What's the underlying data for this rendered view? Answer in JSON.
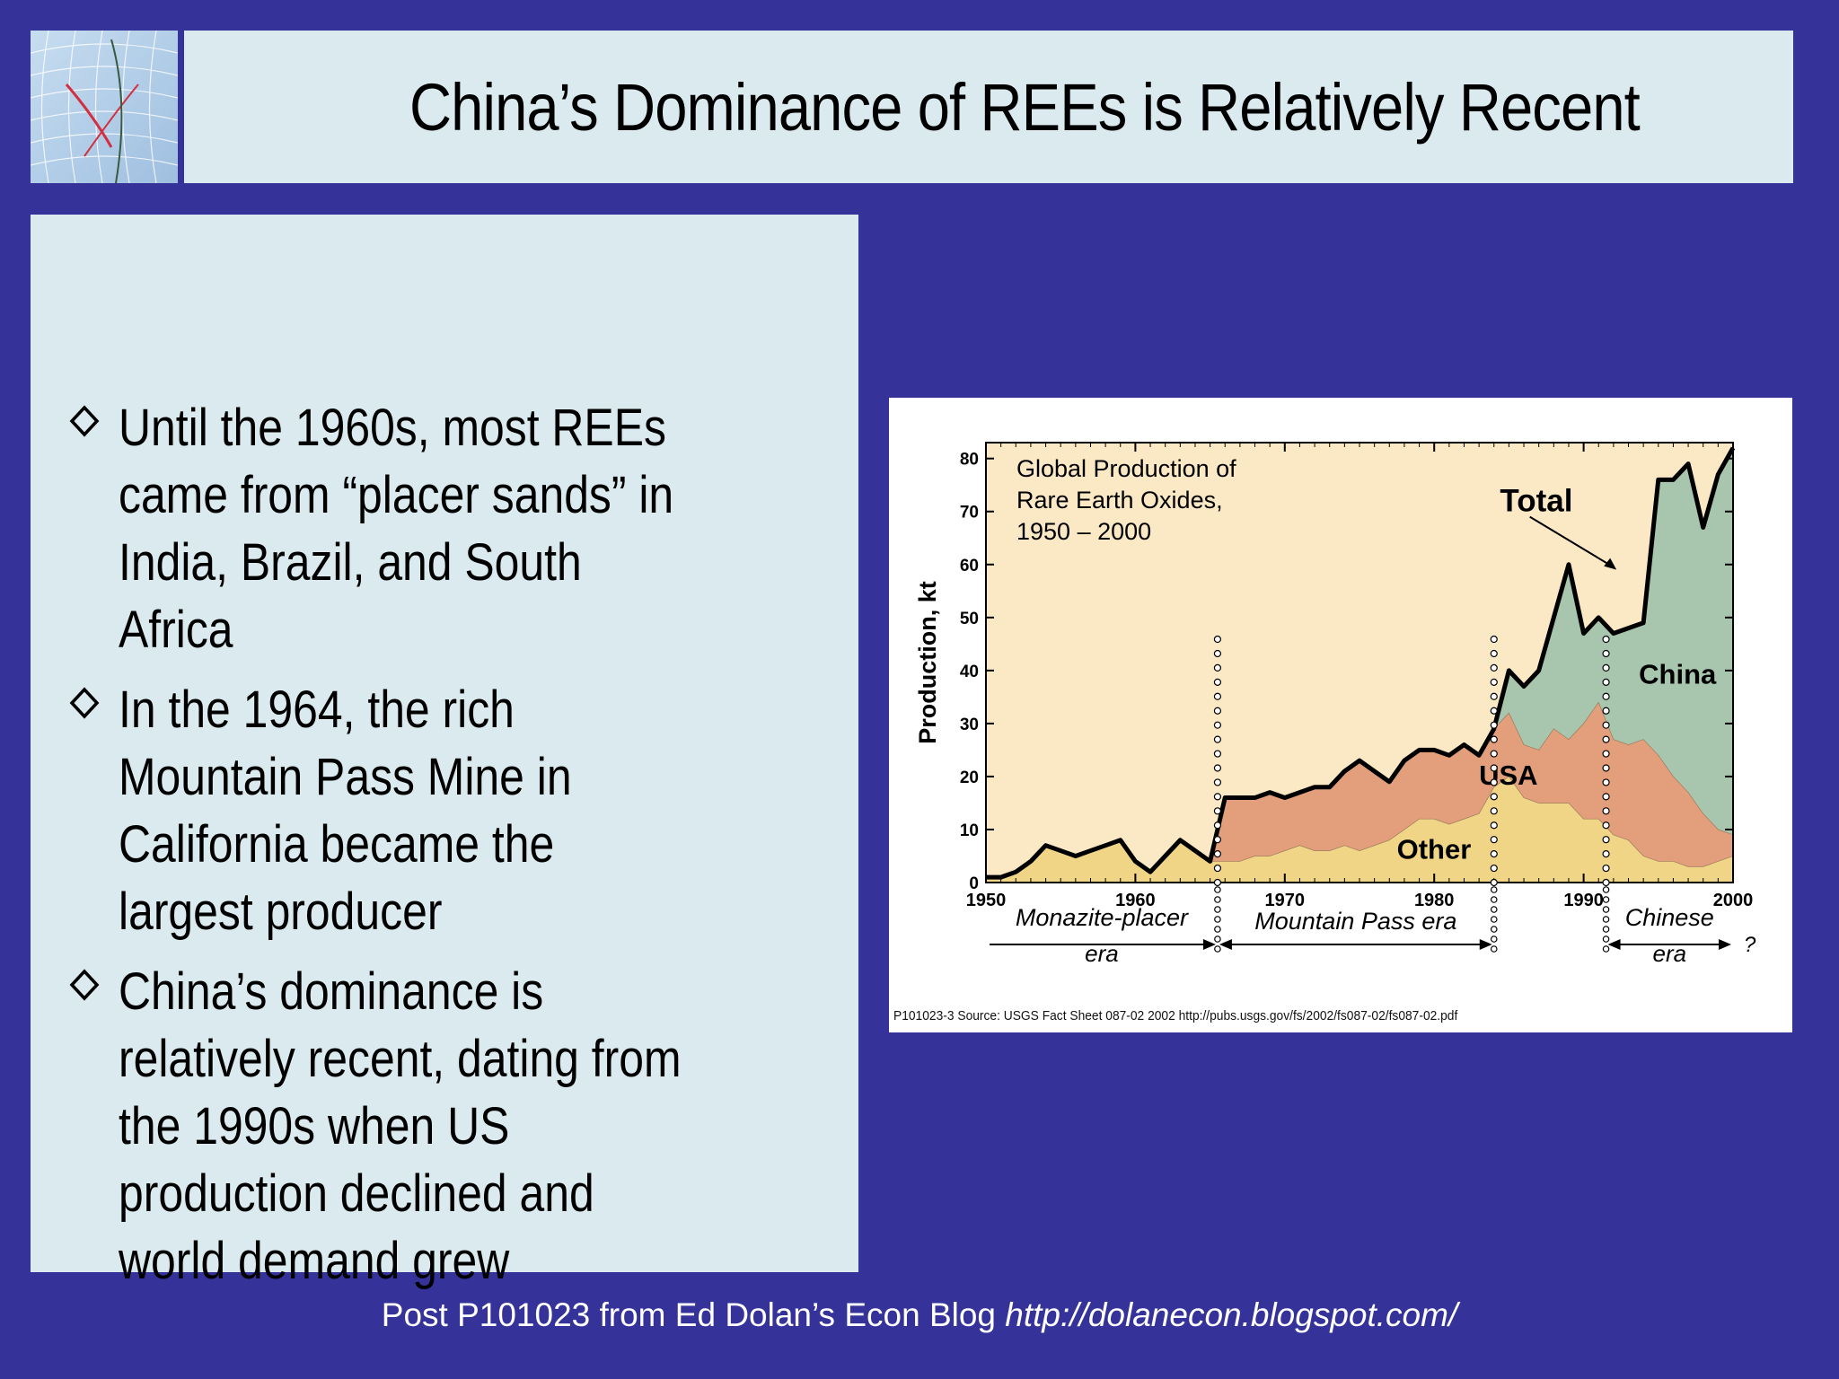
{
  "slide": {
    "title": "China’s Dominance of REEs is Relatively Recent",
    "bullets": [
      "Until the 1960s, most REEs came from “placer sands” in India, Brazil, and South Africa",
      "In the 1964, the rich Mountain Pass Mine in California became the largest producer",
      "China’s dominance is relatively recent, dating from the 1990s when US production declined and world demand grew"
    ],
    "footer_prefix": "Post P101023 from Ed Dolan’s Econ Blog ",
    "footer_url": "http://dolanecon.blogspot.com/",
    "source_note": "P101023-3 Source: USGS Fact Sheet 087-02 2002 http://pubs.usgs.gov/fs/2002/fs087-02/fs087-02.pdf",
    "logo_icon": "globe-map-icon",
    "bullet_icon": "diamond-outline-icon"
  },
  "chart_data": {
    "type": "area",
    "title_lines": [
      "Global Production of",
      "Rare Earth Oxides,",
      "1950 – 2000"
    ],
    "ylabel": "Production, kt",
    "xlabel": "",
    "xlim": [
      1950,
      2000
    ],
    "ylim": [
      0,
      83
    ],
    "x_ticks": [
      1950,
      1960,
      1970,
      1980,
      1990,
      2000
    ],
    "y_ticks": [
      0,
      10,
      20,
      30,
      40,
      50,
      60,
      70,
      80
    ],
    "colors": {
      "other": "#f0d587",
      "usa": "#e39f7c",
      "china": "#a8c5ad",
      "total_line": "#000000",
      "plot_bg": "#fbe8c4"
    },
    "years": [
      1950,
      1951,
      1952,
      1953,
      1954,
      1955,
      1956,
      1957,
      1958,
      1959,
      1960,
      1961,
      1962,
      1963,
      1964,
      1965,
      1966,
      1967,
      1968,
      1969,
      1970,
      1971,
      1972,
      1973,
      1974,
      1975,
      1976,
      1977,
      1978,
      1979,
      1980,
      1981,
      1982,
      1983,
      1984,
      1985,
      1986,
      1987,
      1988,
      1989,
      1990,
      1991,
      1992,
      1993,
      1994,
      1995,
      1996,
      1997,
      1998,
      1999,
      2000
    ],
    "series": [
      {
        "name": "Other",
        "values": [
          1,
          1,
          2,
          4,
          7,
          6,
          5,
          6,
          7,
          8,
          4,
          2,
          5,
          8,
          6,
          4,
          4,
          4,
          5,
          5,
          6,
          7,
          6,
          6,
          7,
          6,
          7,
          8,
          10,
          12,
          12,
          11,
          12,
          13,
          18,
          20,
          16,
          15,
          15,
          15,
          12,
          12,
          9,
          8,
          5,
          4,
          4,
          3,
          3,
          4,
          5
        ]
      },
      {
        "name": "USA",
        "values": [
          0,
          0,
          0,
          0,
          0,
          0,
          0,
          0,
          0,
          0,
          0,
          0,
          0,
          0,
          0,
          0,
          12,
          12,
          11,
          12,
          10,
          10,
          12,
          12,
          14,
          17,
          14,
          11,
          13,
          13,
          13,
          13,
          14,
          11,
          11,
          12,
          10,
          10,
          14,
          12,
          18,
          22,
          18,
          18,
          22,
          20,
          16,
          14,
          10,
          6,
          4
        ]
      },
      {
        "name": "China",
        "values": [
          0,
          0,
          0,
          0,
          0,
          0,
          0,
          0,
          0,
          0,
          0,
          0,
          0,
          0,
          0,
          0,
          0,
          0,
          0,
          0,
          0,
          0,
          0,
          0,
          0,
          0,
          0,
          0,
          0,
          0,
          0,
          0,
          0,
          0,
          0,
          8,
          11,
          15,
          21,
          33,
          17,
          16,
          20,
          22,
          22,
          52,
          56,
          62,
          54,
          67,
          73
        ]
      }
    ],
    "total_label": "Total",
    "eras": [
      {
        "start": 1950,
        "end": 1965.5,
        "label_lines": [
          "Monazite-placer",
          "era"
        ]
      },
      {
        "start": 1965.5,
        "end": 1984,
        "label_lines": [
          "Mountain Pass era"
        ]
      },
      {
        "start": 1991.5,
        "end": 2000,
        "label_lines": [
          "Chinese",
          "era"
        ]
      }
    ],
    "era_question_mark": "?"
  }
}
